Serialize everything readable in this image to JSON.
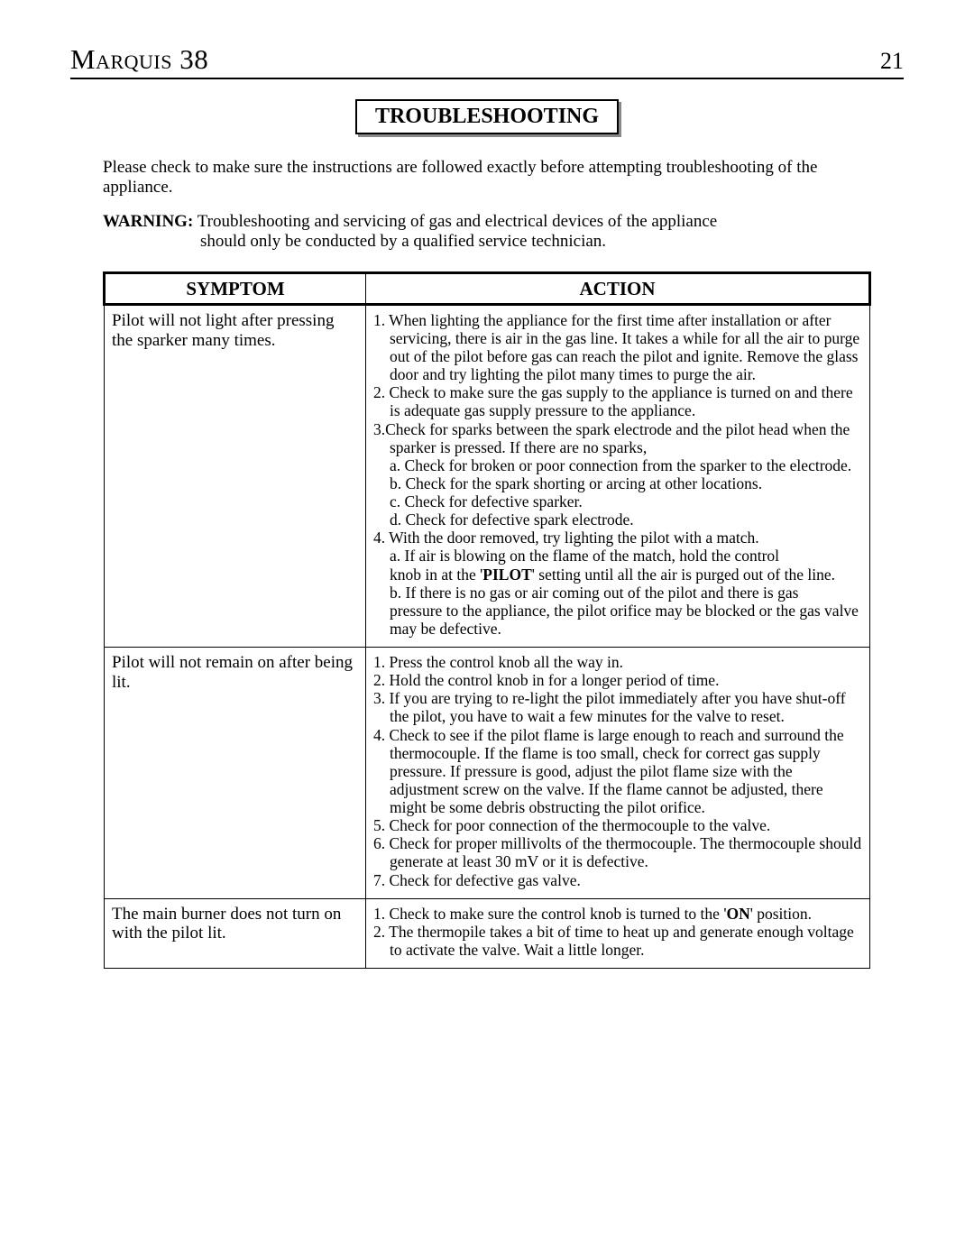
{
  "header": {
    "product": "Marquis 38",
    "page_number": "21"
  },
  "section_title": "TROUBLESHOOTING",
  "intro": "Please check to make sure the instructions are followed exactly before attempting troubleshooting of the appliance.",
  "warning": {
    "label": "WARNING:",
    "line1": "Troubleshooting and servicing of gas and electrical devices of the appliance",
    "line2": "should only be conducted by a qualified service technician."
  },
  "table": {
    "columns": {
      "symptom": "SYMPTOM",
      "action": "ACTION"
    },
    "rows": [
      {
        "symptom": "Pilot will not light after pressing the sparker many times.",
        "action": [
          {
            "cls": "act-line",
            "t": "1. When lighting the appliance for the first time after installation or after servicing, there is air in the gas line. It takes a while for all the air to purge out of the pilot before gas can reach the pilot and ignite. Remove the glass door and try lighting the pilot many times to purge the air."
          },
          {
            "cls": "act-line",
            "t": "2. Check to make sure the gas supply to the appliance is turned on and there is adequate gas supply pressure to the appliance."
          },
          {
            "cls": "act-line",
            "t": "3.Check for sparks between the spark electrode and the pilot head when the sparker is pressed. If there are no sparks,"
          },
          {
            "cls": "act-sub",
            "t": "a. Check for broken or poor connection from the sparker to the electrode."
          },
          {
            "cls": "act-sub",
            "t": "b. Check for the spark shorting or arcing at other locations."
          },
          {
            "cls": "act-sub",
            "t": "c. Check for defective sparker."
          },
          {
            "cls": "act-sub",
            "t": "d. Check for defective spark electrode."
          },
          {
            "cls": "act-line",
            "t": "4. With the door removed, try lighting  the pilot with a match."
          },
          {
            "cls": "act-sub",
            "t": "a. If air is blowing on the flame of the match, hold the control"
          },
          {
            "cls": "act-cont",
            "html": "knob in at the '<span class=\"bold\">PILOT</span>' setting until all the air is purged out of the line."
          },
          {
            "cls": "act-sub",
            "t": "b. If there is no gas or air coming out of the pilot and there is gas"
          },
          {
            "cls": "act-cont",
            "t": "pressure to the appliance, the pilot orifice may be blocked or the gas valve may be defective."
          }
        ]
      },
      {
        "symptom": "Pilot will not remain on after being lit.",
        "action": [
          {
            "cls": "act-line",
            "t": "1. Press the control knob all the way in."
          },
          {
            "cls": "act-line",
            "t": "2. Hold the control knob in for a longer period of time."
          },
          {
            "cls": "act-line",
            "t": "3. If you are trying to re-light the pilot immediately after you have shut-off the pilot, you have to wait a few minutes for the valve to reset."
          },
          {
            "cls": "act-line",
            "t": "4. Check to see if the pilot flame is large enough to reach and surround the thermocouple. If the flame is too small, check for correct gas supply pressure. If pressure is good, adjust the pilot flame size with the adjustment screw on the valve. If the flame cannot be adjusted, there might be some debris obstructing the pilot orifice."
          },
          {
            "cls": "act-line",
            "t": "5. Check for poor connection of the thermocouple to the valve."
          },
          {
            "cls": "act-line",
            "t": "6. Check for proper millivolts of the thermocouple. The thermocouple should generate at least 30 mV or it is defective."
          },
          {
            "cls": "act-line",
            "t": "7. Check for defective gas valve."
          }
        ]
      },
      {
        "symptom": "The main burner does not turn on with the pilot lit.",
        "action": [
          {
            "cls": "act-line",
            "html": "1. Check to make sure the control knob is turned to the '<span class=\"bold\">ON</span>' position."
          },
          {
            "cls": "act-line",
            "t": "2. The thermopile takes a bit of time to heat up and generate enough voltage to activate the valve. Wait a little longer."
          }
        ]
      }
    ]
  }
}
